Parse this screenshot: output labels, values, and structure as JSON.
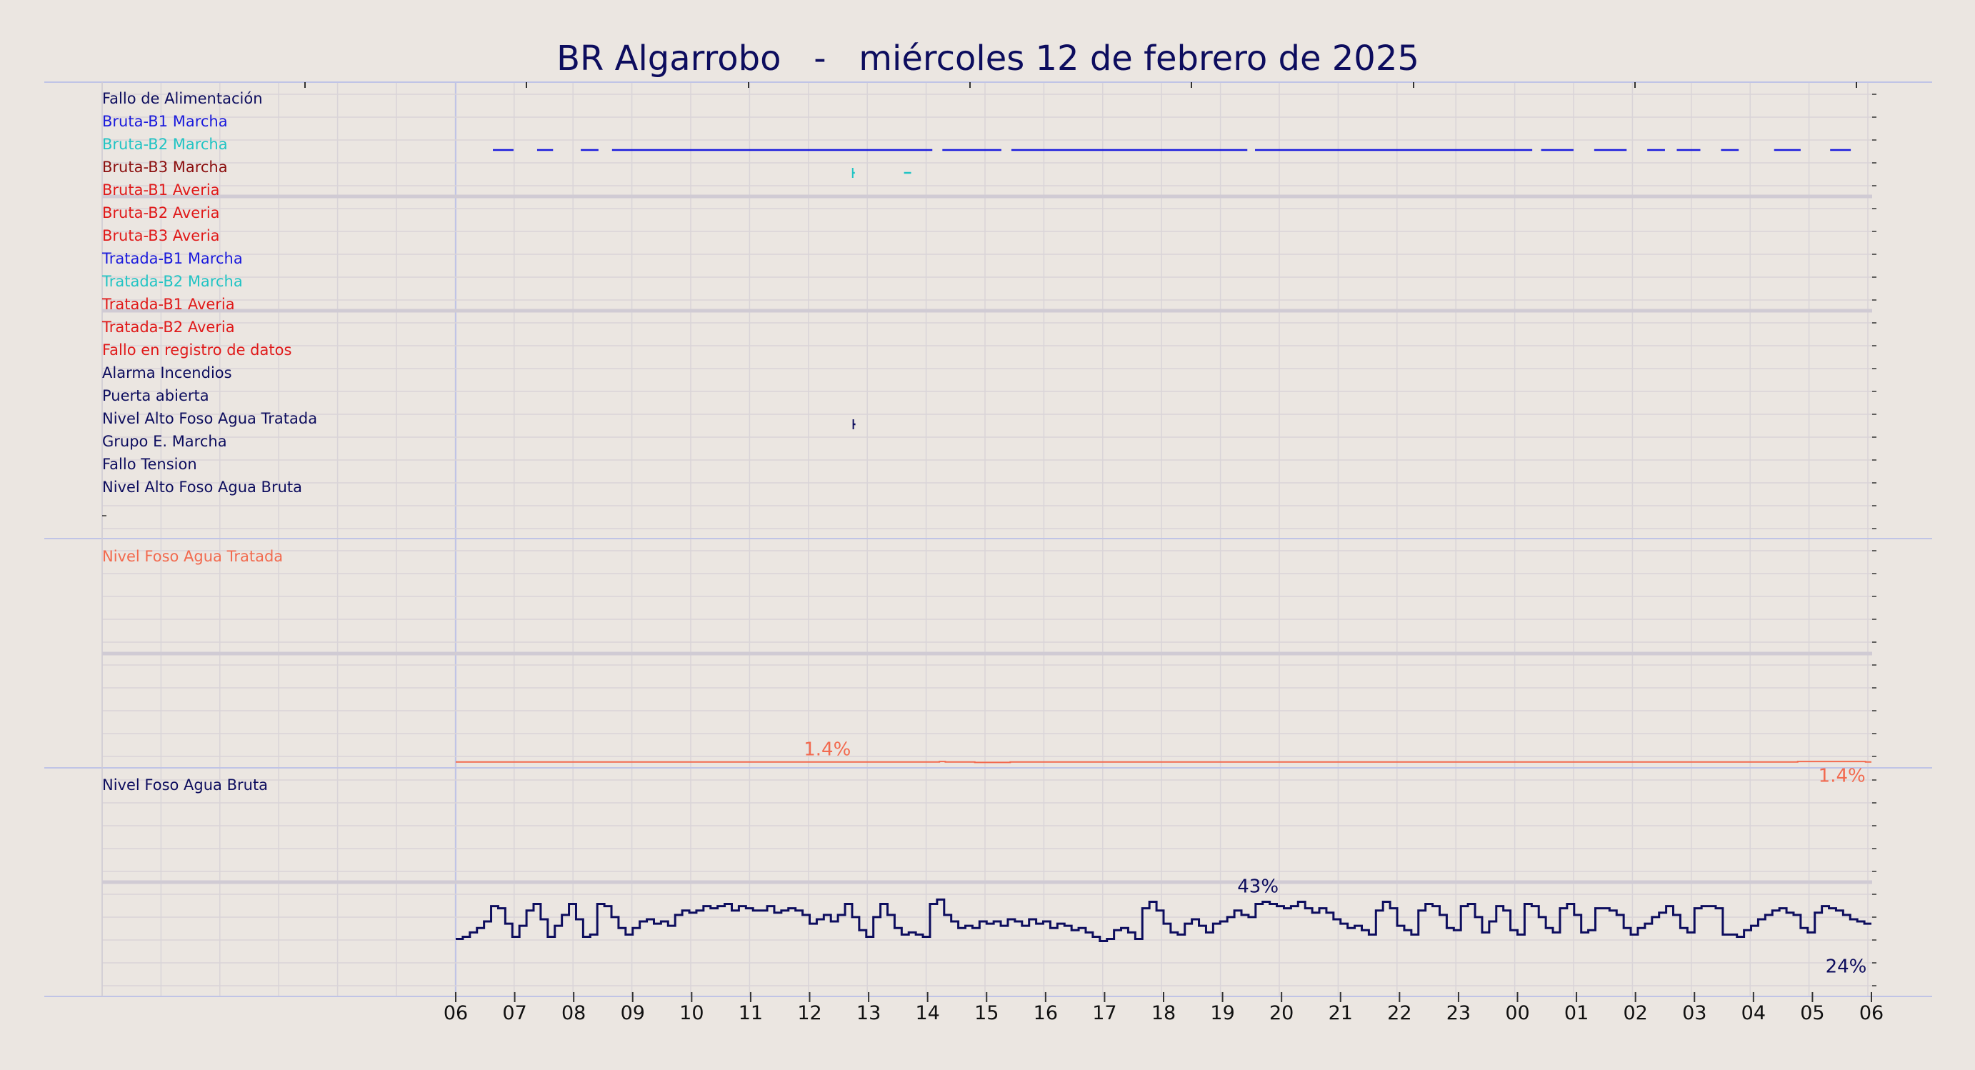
{
  "title": "BR Algarrobo   -   miércoles 12 de febrero de 2025",
  "colors": {
    "background": "#ebe6e1",
    "grid": "#d9d4d8",
    "grid_major": "#d0cbd4",
    "border": "#c0c4e6",
    "navy": "#0d0d5e",
    "blue": "#1a1adc",
    "cyan": "#22c4c4",
    "darkred": "#8b0f0f",
    "red": "#e01a1a",
    "salmon": "#f26a4f"
  },
  "x_axis": {
    "tick_labels": [
      "06",
      "07",
      "08",
      "09",
      "10",
      "11",
      "12",
      "13",
      "14",
      "15",
      "16",
      "17",
      "18",
      "19",
      "20",
      "21",
      "22",
      "23",
      "00",
      "01",
      "02",
      "03",
      "04",
      "05",
      "06"
    ],
    "unit": "hours",
    "range_hours": [
      0,
      24
    ]
  },
  "chart_data": [
    {
      "type": "timeline",
      "panel": "digital-signals",
      "signals": [
        {
          "name": "Fallo de Alimentación",
          "color": "navy",
          "segments": []
        },
        {
          "name": "Bruta-B1 Marcha",
          "color": "blue",
          "segments": [
            [
              0.63,
              0.98
            ],
            [
              1.38,
              1.65
            ],
            [
              2.12,
              2.42
            ],
            [
              2.65,
              8.08
            ],
            [
              8.25,
              9.25
            ],
            [
              9.42,
              13.42
            ],
            [
              13.55,
              18.25
            ],
            [
              18.4,
              18.95
            ],
            [
              19.3,
              19.85
            ],
            [
              20.2,
              20.5
            ],
            [
              20.7,
              21.1
            ],
            [
              21.45,
              21.75
            ],
            [
              22.35,
              22.8
            ],
            [
              23.3,
              23.65
            ]
          ]
        },
        {
          "name": "Bruta-B2 Marcha",
          "color": "cyan",
          "segments": [
            [
              6.73,
              6.76
            ],
            [
              7.6,
              7.72
            ]
          ]
        },
        {
          "name": "Bruta-B3 Marcha",
          "color": "darkred",
          "segments": []
        },
        {
          "name": "Bruta-B1 Averia",
          "color": "red",
          "segments": []
        },
        {
          "name": "Bruta-B2 Averia",
          "color": "red",
          "segments": []
        },
        {
          "name": "Bruta-B3 Averia",
          "color": "red",
          "segments": []
        },
        {
          "name": "Tratada-B1 Marcha",
          "color": "blue",
          "segments": []
        },
        {
          "name": "Tratada-B2 Marcha",
          "color": "cyan",
          "segments": []
        },
        {
          "name": "Tratada-B1 Averia",
          "color": "red",
          "segments": []
        },
        {
          "name": "Tratada-B2 Averia",
          "color": "red",
          "segments": []
        },
        {
          "name": "Fallo en registro de datos",
          "color": "red",
          "segments": []
        },
        {
          "name": "Alarma Incendios",
          "color": "navy",
          "segments": []
        },
        {
          "name": "Puerta abierta",
          "color": "navy",
          "segments": [
            [
              6.74,
              6.77
            ]
          ]
        },
        {
          "name": "Nivel Alto Foso Agua Tratada",
          "color": "navy",
          "segments": []
        },
        {
          "name": "Grupo E. Marcha",
          "color": "navy",
          "segments": []
        },
        {
          "name": "Fallo Tension",
          "color": "navy",
          "segments": []
        },
        {
          "name": "Nivel Alto Foso Agua Bruta",
          "color": "navy",
          "segments": []
        }
      ]
    },
    {
      "type": "line",
      "panel": "nivel-foso-agua-tratada",
      "label": "Nivel Foso Agua Tratada",
      "color": "salmon",
      "ylim": [
        0,
        100
      ],
      "x": [
        0,
        8.1,
        8.2,
        8.3,
        8.7,
        8.8,
        9.3,
        9.4,
        22.6,
        22.75,
        23.9
      ],
      "values": [
        1.4,
        1.4,
        1.6,
        1.4,
        1.4,
        1.2,
        1.2,
        1.4,
        1.4,
        1.6,
        1.4
      ],
      "annotations": [
        {
          "x": 6.3,
          "value": 1.4,
          "text": "1.4%"
        },
        {
          "x": 23.9,
          "value": 1.4,
          "text": "1.4%"
        }
      ]
    },
    {
      "type": "line",
      "panel": "nivel-foso-agua-bruta",
      "label": "Nivel Foso Agua Bruta",
      "color": "navy",
      "ylim": [
        0,
        100
      ],
      "x": [
        0,
        0.12,
        0.24,
        0.36,
        0.48,
        0.6,
        0.72,
        0.84,
        0.96,
        1.08,
        1.2,
        1.32,
        1.44,
        1.56,
        1.68,
        1.8,
        1.92,
        2.04,
        2.16,
        2.28,
        2.4,
        2.52,
        2.64,
        2.76,
        2.88,
        3.0,
        3.12,
        3.24,
        3.36,
        3.48,
        3.6,
        3.72,
        3.84,
        3.96,
        4.08,
        4.2,
        4.32,
        4.44,
        4.56,
        4.68,
        4.8,
        4.92,
        5.04,
        5.16,
        5.28,
        5.4,
        5.52,
        5.64,
        5.76,
        5.88,
        6.0,
        6.12,
        6.24,
        6.36,
        6.48,
        6.6,
        6.72,
        6.84,
        6.96,
        7.08,
        7.2,
        7.32,
        7.44,
        7.56,
        7.68,
        7.8,
        7.92,
        8.04,
        8.16,
        8.28,
        8.4,
        8.52,
        8.64,
        8.76,
        8.88,
        9.0,
        9.12,
        9.24,
        9.36,
        9.48,
        9.6,
        9.72,
        9.84,
        9.96,
        10.08,
        10.2,
        10.32,
        10.44,
        10.56,
        10.68,
        10.8,
        10.92,
        11.04,
        11.16,
        11.28,
        11.4,
        11.52,
        11.64,
        11.76,
        11.88,
        12.0,
        12.12,
        12.24,
        12.36,
        12.48,
        12.6,
        12.72,
        12.84,
        12.96,
        13.08,
        13.2,
        13.32,
        13.44,
        13.56,
        13.68,
        13.8,
        13.92,
        14.04,
        14.16,
        14.28,
        14.4,
        14.52,
        14.64,
        14.76,
        14.88,
        15.0,
        15.12,
        15.24,
        15.36,
        15.48,
        15.6,
        15.72,
        15.84,
        15.96,
        16.08,
        16.2,
        16.32,
        16.44,
        16.56,
        16.68,
        16.8,
        16.92,
        17.04,
        17.16,
        17.28,
        17.4,
        17.52,
        17.64,
        17.76,
        17.88,
        18.0,
        18.12,
        18.24,
        18.36,
        18.48,
        18.6,
        18.72,
        18.84,
        18.96,
        19.08,
        19.2,
        19.32,
        19.44,
        19.56,
        19.68,
        19.8,
        19.92,
        20.04,
        20.16,
        20.28,
        20.4,
        20.52,
        20.64,
        20.76,
        20.88,
        21.0,
        21.12,
        21.24,
        21.36,
        21.48,
        21.6,
        21.72,
        21.84,
        21.96,
        22.08,
        22.2,
        22.32,
        22.44,
        22.56,
        22.68,
        22.8,
        22.92,
        23.04,
        23.16,
        23.28,
        23.4,
        23.52,
        23.64,
        23.76,
        23.88
      ],
      "values": [
        25,
        26,
        28,
        30,
        33,
        40,
        39,
        32,
        26,
        31,
        38,
        41,
        34,
        26,
        31,
        36,
        41,
        34,
        26,
        27,
        41,
        40,
        35,
        30,
        27,
        30,
        33,
        34,
        32,
        33,
        31,
        36,
        38,
        37,
        38,
        40,
        39,
        40,
        41,
        38,
        40,
        39,
        38,
        38,
        40,
        37,
        38,
        39,
        38,
        36,
        32,
        34,
        36,
        33,
        36,
        41,
        35,
        29,
        26,
        35,
        41,
        36,
        30,
        27,
        28,
        27,
        26,
        41,
        43,
        36,
        33,
        30,
        31,
        30,
        33,
        32,
        33,
        31,
        34,
        33,
        31,
        34,
        32,
        33,
        30,
        32,
        31,
        29,
        30,
        28,
        26,
        24,
        25,
        29,
        30,
        28,
        25,
        39,
        42,
        38,
        32,
        28,
        27,
        32,
        34,
        31,
        28,
        32,
        33,
        35,
        38,
        36,
        35,
        41,
        42,
        41,
        40,
        39,
        40,
        42,
        39,
        37,
        39,
        37,
        34,
        32,
        30,
        31,
        29,
        27,
        38,
        42,
        39,
        31,
        29,
        27,
        38,
        41,
        40,
        36,
        30,
        29,
        40,
        41,
        35,
        28,
        33,
        40,
        38,
        29,
        27,
        41,
        40,
        35,
        30,
        28,
        39,
        41,
        36,
        28,
        29,
        39,
        39,
        38,
        36,
        30,
        27,
        30,
        32,
        35,
        37,
        40,
        36,
        30,
        28,
        39,
        40,
        40,
        39,
        27,
        27,
        26,
        29,
        31,
        34,
        36,
        38,
        39,
        37,
        36,
        30,
        28,
        37,
        40,
        39,
        38,
        36,
        34,
        33,
        32
      ],
      "annotations": [
        {
          "x": 13.6,
          "value": 43,
          "text": "43%"
        },
        {
          "x": 23.92,
          "value": 24,
          "text": "24%"
        }
      ]
    }
  ]
}
